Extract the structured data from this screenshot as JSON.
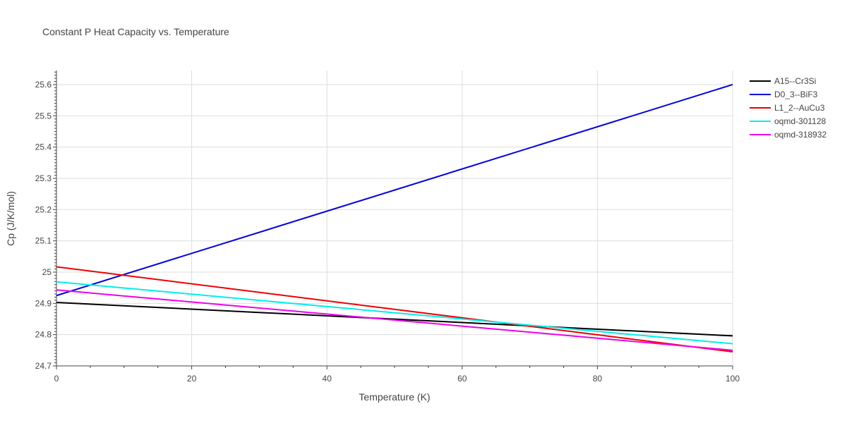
{
  "chart_data": {
    "type": "line",
    "title": "Constant P Heat Capacity vs. Temperature",
    "xlabel": "Temperature (K)",
    "ylabel": "Cp (J/K/mol)",
    "xlim": [
      0,
      100
    ],
    "ylim": [
      24.7,
      25.645
    ],
    "xticks": [
      0,
      20,
      40,
      60,
      80,
      100
    ],
    "xtick_labels": [
      "0",
      "20",
      "40",
      "60",
      "80",
      "100"
    ],
    "yticks": [
      24.7,
      24.8,
      24.9,
      25.0,
      25.1,
      25.2,
      25.3,
      25.4,
      25.5,
      25.6
    ],
    "ytick_labels": [
      "24.7",
      "24.8",
      "24.9",
      "25",
      "25.1",
      "25.2",
      "25.3",
      "25.4",
      "25.5",
      "25.6"
    ],
    "grid": true,
    "legend_position": "top-right",
    "x": [
      0,
      100
    ],
    "series": [
      {
        "name": "A15--Cr3Si",
        "color": "#000000",
        "values": [
          24.903,
          24.796
        ]
      },
      {
        "name": "D0_3--BiF3",
        "color": "#0000dd",
        "values": [
          24.925,
          25.6
        ]
      },
      {
        "name": "L1_2--AuCu3",
        "color": "#ee0000",
        "values": [
          25.017,
          24.745
        ]
      },
      {
        "name": "oqmd-301128",
        "color": "#00eeee",
        "values": [
          24.969,
          24.771
        ]
      },
      {
        "name": "oqmd-318932",
        "color": "#ee00ee",
        "values": [
          24.943,
          24.75
        ]
      }
    ]
  }
}
